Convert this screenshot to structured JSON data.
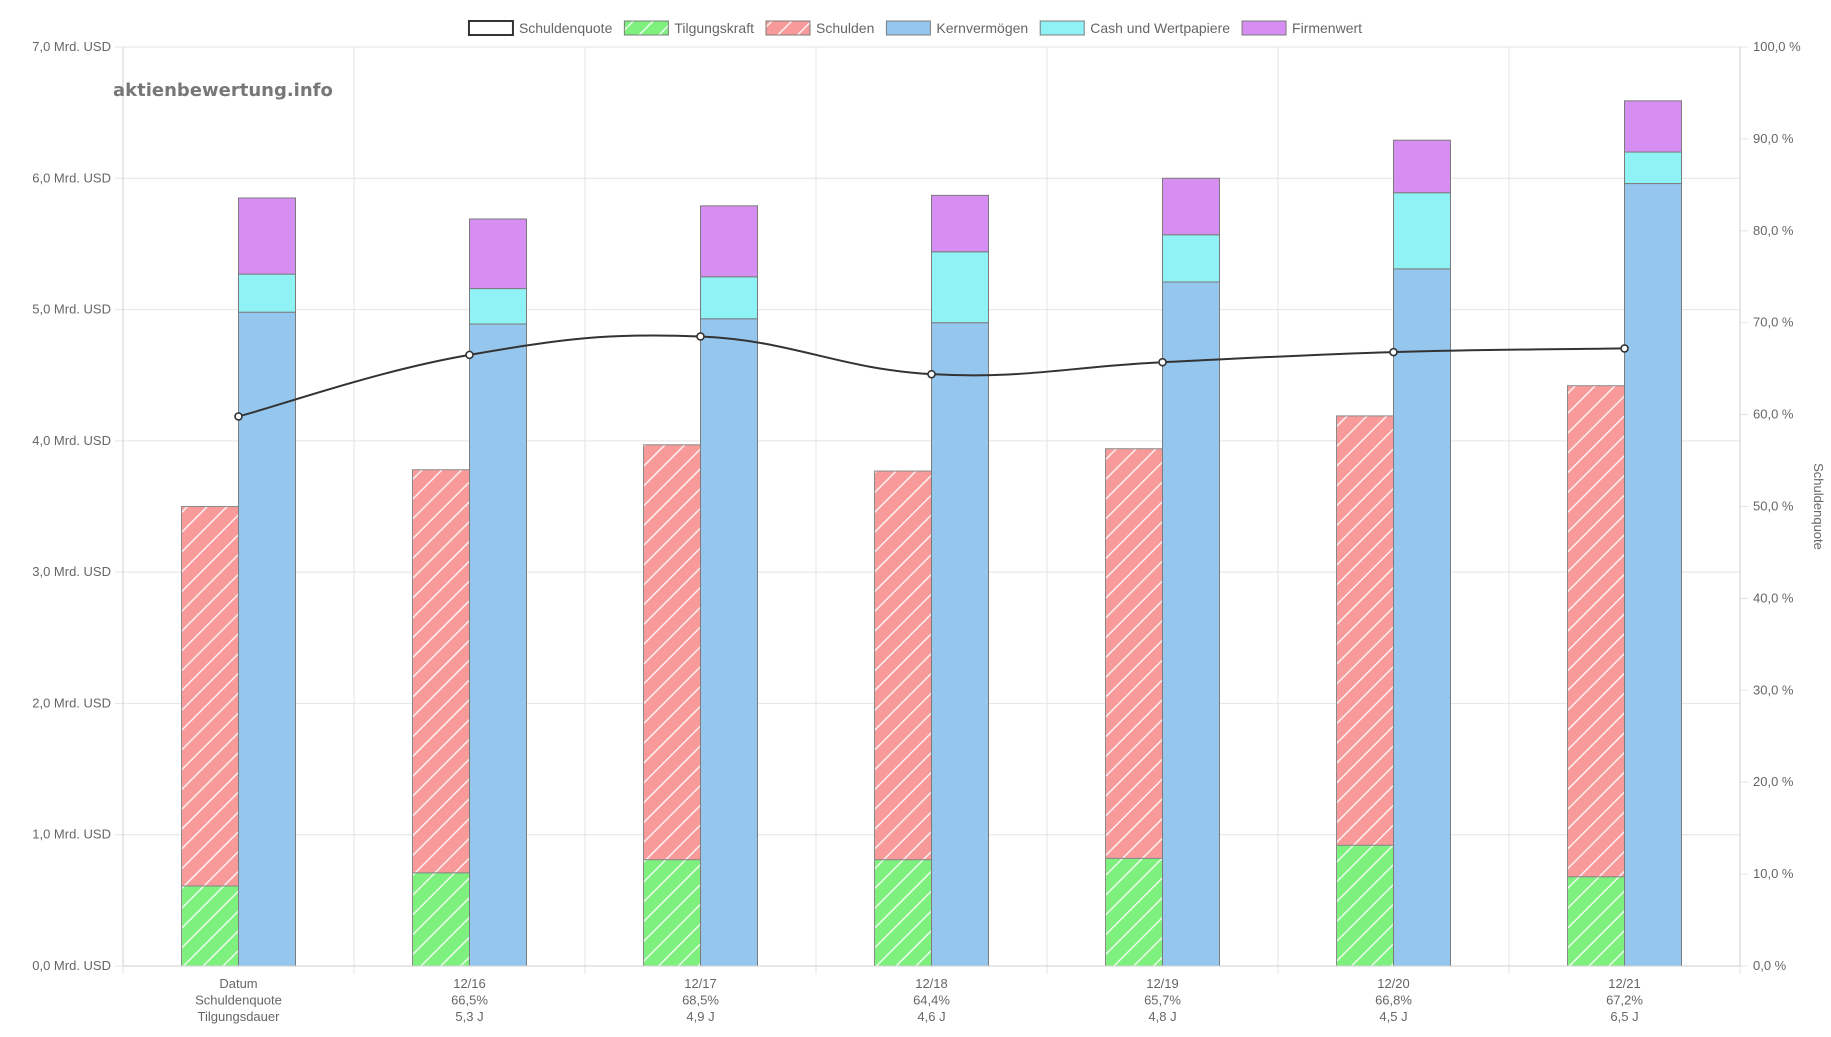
{
  "watermark": "aktienbewertung.info",
  "legend": [
    {
      "label": "Schuldenquote",
      "key": "line"
    },
    {
      "label": "Tilgungskraft",
      "key": "tilgung"
    },
    {
      "label": "Schulden",
      "key": "schulden"
    },
    {
      "label": "Kernvermögen",
      "key": "kern"
    },
    {
      "label": "Cash und Wertpapiere",
      "key": "cash"
    },
    {
      "label": "Firmenwert",
      "key": "firmenwert"
    }
  ],
  "colors": {
    "tilgung": "#7ef07e",
    "schulden": "#f99a9a",
    "kern": "#95c6ee",
    "cash": "#8ff2f4",
    "firmenwert": "#d68ef2",
    "line": "#333333",
    "grid": "#e4e4e4"
  },
  "chart_data": {
    "type": "bar",
    "categories": [
      [
        "Datum",
        "Schuldenquote",
        "Tilgungsdauer"
      ],
      [
        "12/16",
        "66,5%",
        "5,3 J"
      ],
      [
        "12/17",
        "68,5%",
        "4,9 J"
      ],
      [
        "12/18",
        "64,4%",
        "4,6 J"
      ],
      [
        "12/19",
        "65,7%",
        "4,8 J"
      ],
      [
        "12/20",
        "66,8%",
        "4,5 J"
      ],
      [
        "12/21",
        "67,2%",
        "6,5 J"
      ]
    ],
    "stack_left": {
      "tilgung": [
        0.61,
        0.71,
        0.81,
        0.81,
        0.82,
        0.92,
        0.68
      ],
      "schulden_total": [
        3.5,
        3.78,
        3.97,
        3.77,
        3.94,
        4.19,
        4.42
      ]
    },
    "stack_right": {
      "kern": [
        4.98,
        4.89,
        4.93,
        4.9,
        5.21,
        5.31,
        5.96
      ],
      "cash_total": [
        5.27,
        5.16,
        5.25,
        5.44,
        5.57,
        5.89,
        6.2
      ],
      "firmenwert_total": [
        5.85,
        5.69,
        5.79,
        5.87,
        6.0,
        6.29,
        6.59
      ]
    },
    "line_values": [
      59.8,
      66.5,
      68.5,
      64.4,
      65.7,
      66.8,
      67.2
    ],
    "y_left": {
      "min": 0,
      "max": 7,
      "step": 1,
      "ticks": [
        "0,0 Mrd. USD",
        "1,0 Mrd. USD",
        "2,0 Mrd. USD",
        "3,0 Mrd. USD",
        "4,0 Mrd. USD",
        "5,0 Mrd. USD",
        "6,0 Mrd. USD",
        "7,0 Mrd. USD"
      ]
    },
    "y_right": {
      "min": 0,
      "max": 100,
      "step": 10,
      "label": "Schuldenquote",
      "ticks": [
        "0,0 %",
        "10,0 %",
        "20,0 %",
        "30,0 %",
        "40,0 %",
        "50,0 %",
        "60,0 %",
        "70,0 %",
        "80,0 %",
        "90,0 %",
        "100,0 %"
      ]
    },
    "grid": true,
    "legend_position": "top"
  }
}
